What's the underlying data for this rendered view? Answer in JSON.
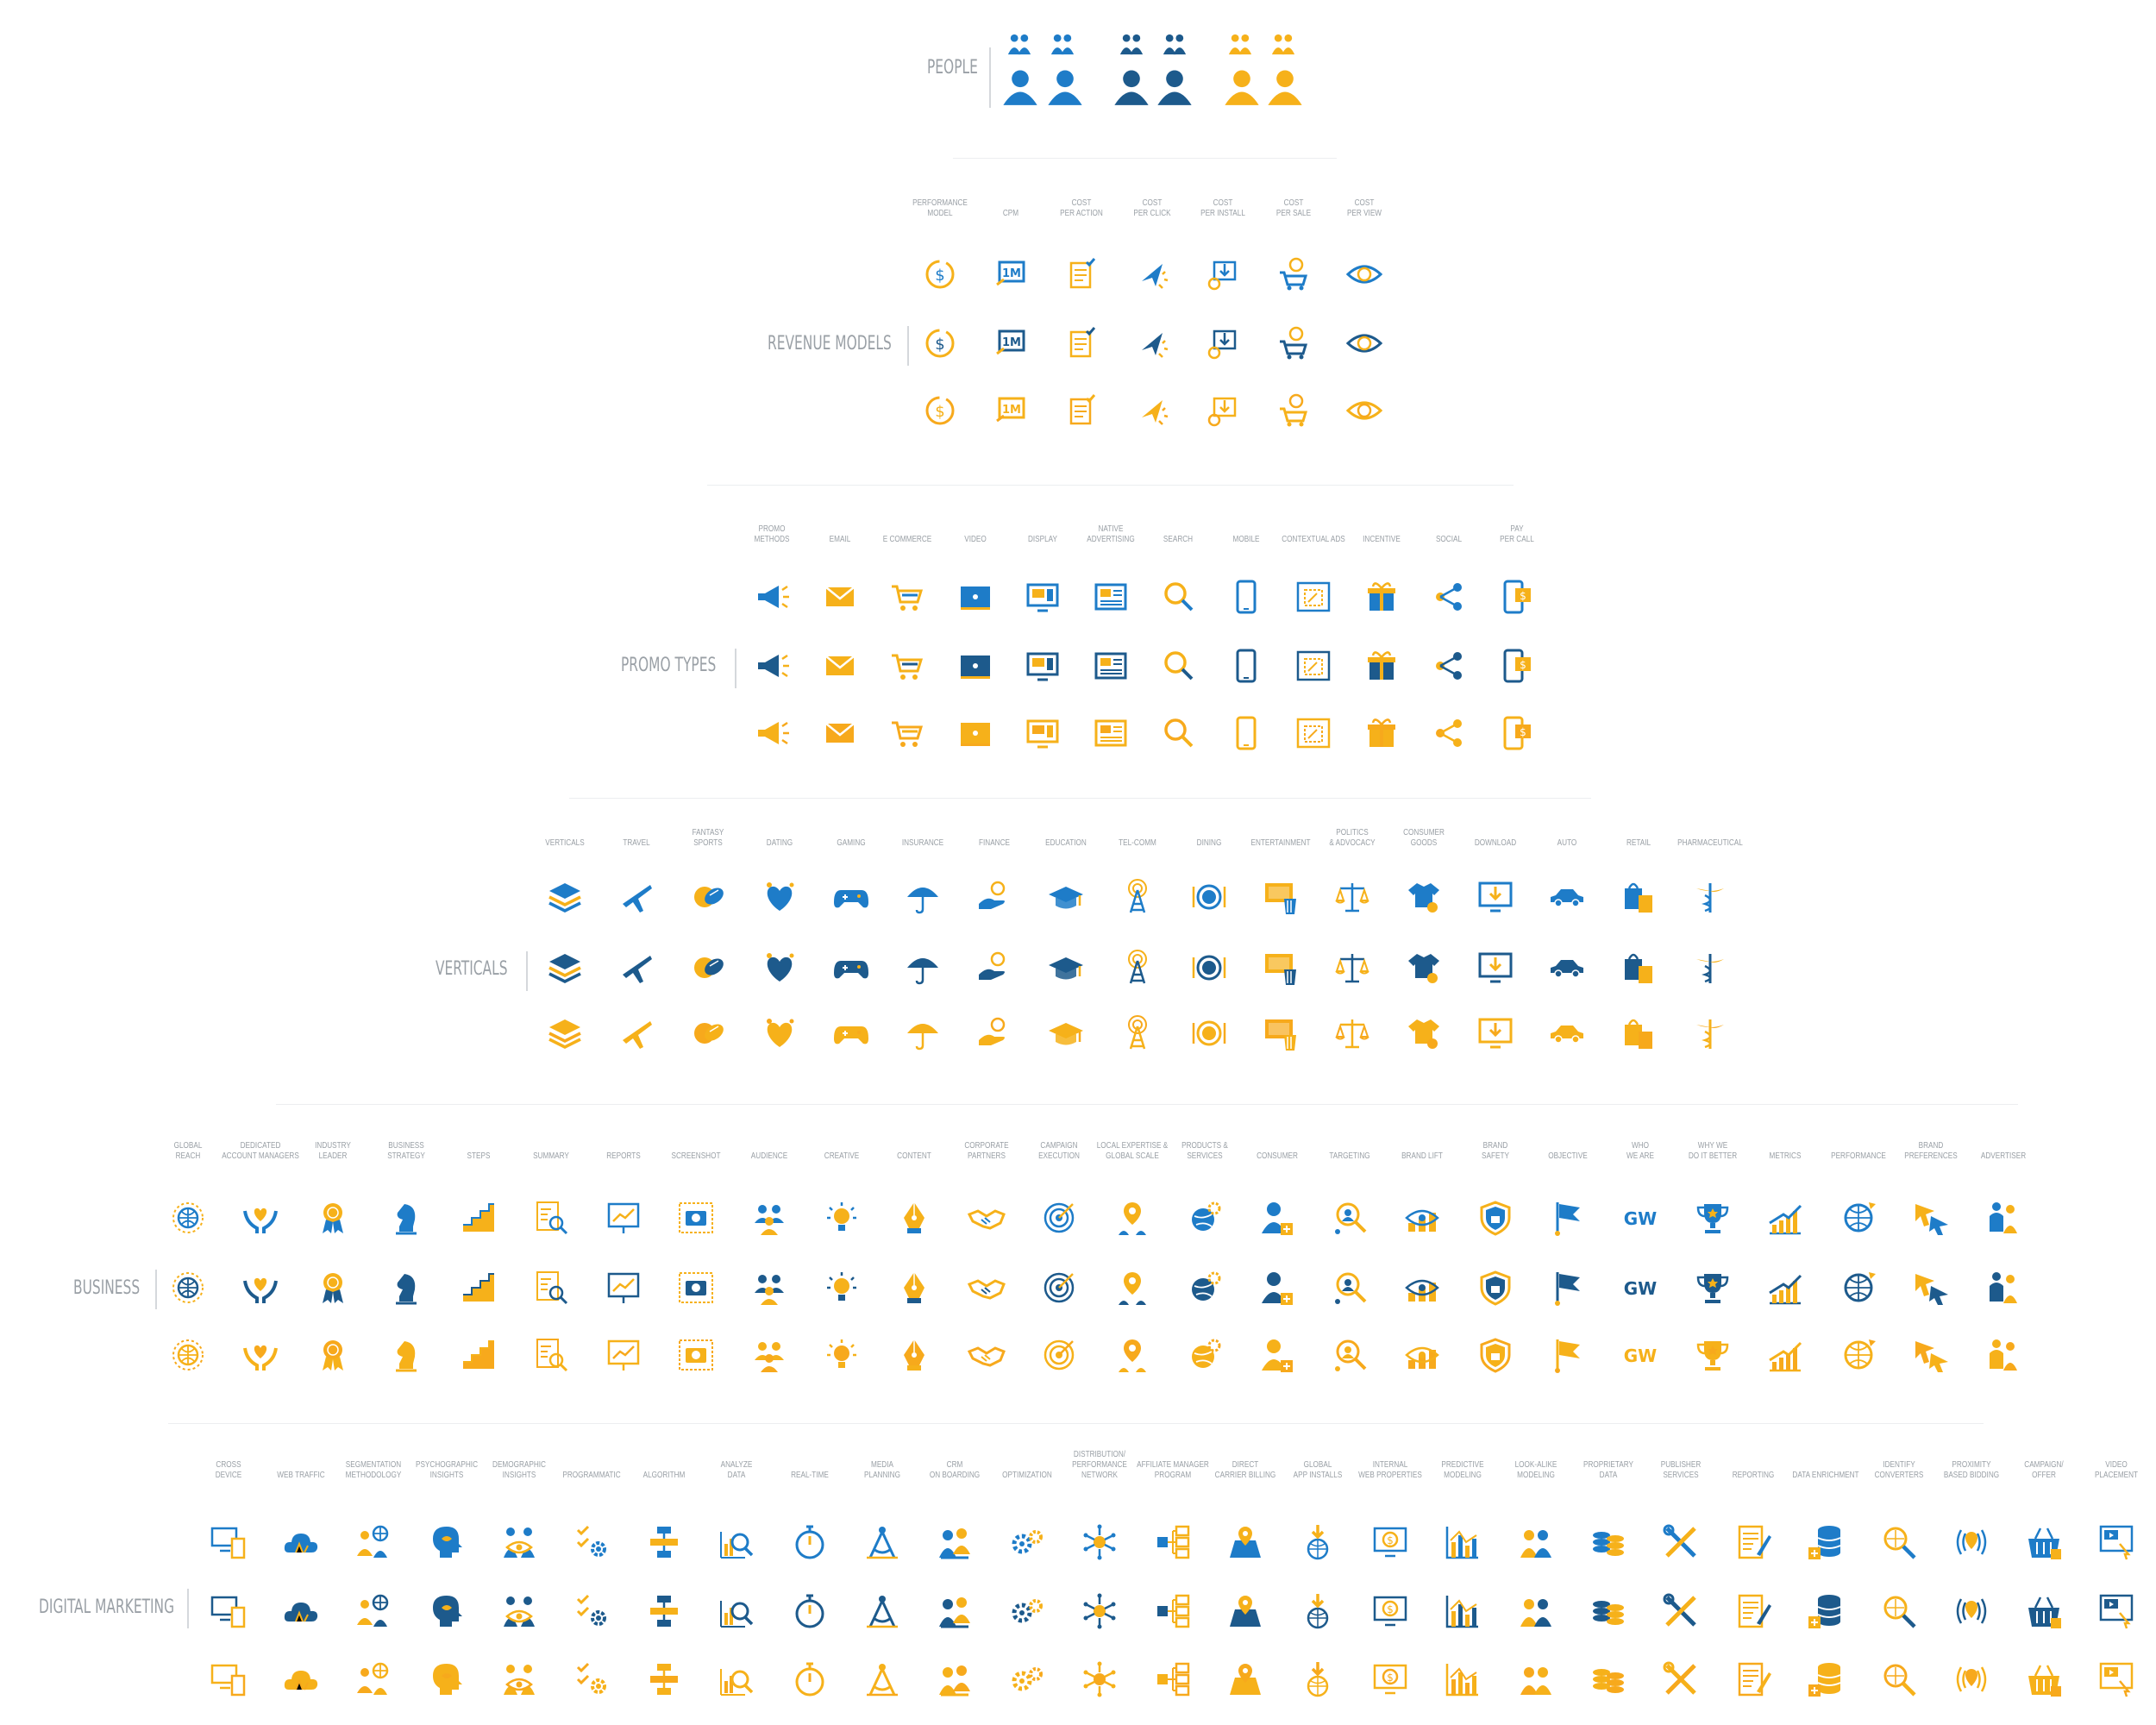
{
  "colors": {
    "blue": "#1e7cc8",
    "navy": "#1d5a8c",
    "orange": "#f6b11a",
    "gold": "#f7a91c",
    "label": "#9aa0a6"
  },
  "sections": [
    {
      "id": "people",
      "label": "PEOPLE",
      "columns": [],
      "people_icons": [
        "people-group-icon",
        "people-group-icon",
        "people-group-icon",
        "people-group-icon",
        "people-group-icon",
        "people-group-icon"
      ]
    },
    {
      "id": "revenue",
      "label": "REVENUE MODELS",
      "columns": [
        {
          "label": "PERFORMANCE\nMODEL",
          "icon": "dollar-coin-icon"
        },
        {
          "label": "CPM",
          "icon": "one-million-icon"
        },
        {
          "label": "COST\nPER ACTION",
          "icon": "checklist-icon"
        },
        {
          "label": "COST\nPER CLICK",
          "icon": "cursor-click-icon"
        },
        {
          "label": "COST\nPER INSTALL",
          "icon": "install-coin-icon"
        },
        {
          "label": "COST\nPER SALE",
          "icon": "cart-coin-icon"
        },
        {
          "label": "COST\nPER VIEW",
          "icon": "eye-dollar-icon"
        }
      ]
    },
    {
      "id": "promo",
      "label": "PROMO TYPES",
      "columns": [
        {
          "label": "PROMO\nMETHODS",
          "icon": "megaphone-icon"
        },
        {
          "label": "EMAIL",
          "icon": "envelope-icon"
        },
        {
          "label": "E COMMERCE",
          "icon": "cart-icon"
        },
        {
          "label": "VIDEO",
          "icon": "video-screen-icon"
        },
        {
          "label": "DISPLAY",
          "icon": "display-monitor-icon"
        },
        {
          "label": "NATIVE\nADVERTISING",
          "icon": "native-ad-icon"
        },
        {
          "label": "SEARCH",
          "icon": "magnifier-icon"
        },
        {
          "label": "MOBILE",
          "icon": "mobile-phone-icon"
        },
        {
          "label": "CONTEXTUAL ADS",
          "icon": "contextual-ad-icon"
        },
        {
          "label": "INCENTIVE",
          "icon": "gift-icon"
        },
        {
          "label": "SOCIAL",
          "icon": "share-icon"
        },
        {
          "label": "PAY\nPER CALL",
          "icon": "phone-dollar-icon"
        }
      ]
    },
    {
      "id": "verticals",
      "label": "VERTICALS",
      "columns": [
        {
          "label": "VERTICALS",
          "icon": "layers-icon"
        },
        {
          "label": "TRAVEL",
          "icon": "airplane-icon"
        },
        {
          "label": "FANTASY\nSPORTS",
          "icon": "balls-icon"
        },
        {
          "label": "DATING",
          "icon": "heart-icon"
        },
        {
          "label": "GAMING",
          "icon": "gamepad-icon"
        },
        {
          "label": "INSURANCE",
          "icon": "umbrella-icon"
        },
        {
          "label": "FINANCE",
          "icon": "hand-coin-icon"
        },
        {
          "label": "EDUCATION",
          "icon": "graduation-cap-icon"
        },
        {
          "label": "TEL-COMM",
          "icon": "antenna-tower-icon"
        },
        {
          "label": "DINING",
          "icon": "plate-icon"
        },
        {
          "label": "ENTERTAINMENT",
          "icon": "tv-popcorn-icon"
        },
        {
          "label": "POLITICS\n& ADVOCACY",
          "icon": "scales-icon"
        },
        {
          "label": "CONSUMER\nGOODS",
          "icon": "shirt-icon"
        },
        {
          "label": "DOWNLOAD",
          "icon": "download-monitor-icon"
        },
        {
          "label": "AUTO",
          "icon": "car-icon"
        },
        {
          "label": "RETAIL",
          "icon": "shopping-bags-icon"
        },
        {
          "label": "PHARMACEUTICAL",
          "icon": "caduceus-icon"
        }
      ]
    },
    {
      "id": "business",
      "label": "BUSINESS",
      "columns": [
        {
          "label": "GLOBAL\nREACH",
          "icon": "globe-icon"
        },
        {
          "label": "DEDICATED\nACCOUNT MANAGERS",
          "icon": "hands-heart-icon"
        },
        {
          "label": "INDUSTRY\nLEADER",
          "icon": "award-ribbon-icon"
        },
        {
          "label": "BUSINESS\nSTRATEGY",
          "icon": "chess-knight-icon"
        },
        {
          "label": "STEPS",
          "icon": "stairs-icon"
        },
        {
          "label": "SUMMARY",
          "icon": "document-search-icon"
        },
        {
          "label": "REPORTS",
          "icon": "report-board-icon"
        },
        {
          "label": "SCREENSHOT",
          "icon": "camera-frame-icon"
        },
        {
          "label": "AUDIENCE",
          "icon": "audience-icon"
        },
        {
          "label": "CREATIVE",
          "icon": "lightbulb-icon"
        },
        {
          "label": "CONTENT",
          "icon": "pen-nib-icon"
        },
        {
          "label": "CORPORATE\nPARTNERS",
          "icon": "handshake-icon"
        },
        {
          "label": "CAMPAIGN\nEXECUTION",
          "icon": "target-icon"
        },
        {
          "label": "LOCAL EXPERTISE &\nGLOBAL SCALE",
          "icon": "location-people-icon"
        },
        {
          "label": "PRODUCTS &\nSERVICES",
          "icon": "globe-gear-icon"
        },
        {
          "label": "CONSUMER",
          "icon": "consumer-add-icon"
        },
        {
          "label": "TARGETING",
          "icon": "targeting-people-icon"
        },
        {
          "label": "BRAND LIFT",
          "icon": "brand-lift-icon"
        },
        {
          "label": "BRAND\nSAFETY",
          "icon": "shield-lock-icon"
        },
        {
          "label": "OBJECTIVE",
          "icon": "flag-icon"
        },
        {
          "label": "WHO\nWE ARE",
          "icon": "gw-logo-icon"
        },
        {
          "label": "WHY WE\nDO IT BETTER",
          "icon": "trophy-icon"
        },
        {
          "label": "METRICS",
          "icon": "growth-chart-icon"
        },
        {
          "label": "PERFORMANCE",
          "icon": "globe-arrow-icon"
        },
        {
          "label": "BRAND\nPREFERENCES",
          "icon": "cursors-icon"
        },
        {
          "label": "ADVERTISER",
          "icon": "business-people-icon"
        }
      ]
    },
    {
      "id": "digital",
      "label": "DIGITAL MARKETING",
      "columns": [
        {
          "label": "CROSS\nDEVICE",
          "icon": "cross-device-icon"
        },
        {
          "label": "WEB TRAFFIC",
          "icon": "cloud-traffic-icon"
        },
        {
          "label": "SEGMENTATION\nMETHODOLOGY",
          "icon": "segmentation-icon"
        },
        {
          "label": "PSYCHOGRAPHIC\nINSIGHTS",
          "icon": "head-eye-icon"
        },
        {
          "label": "DEMOGRAPHIC\nINSIGHTS",
          "icon": "people-eye-icon"
        },
        {
          "label": "PROGRAMMATIC",
          "icon": "checklist-gear-icon"
        },
        {
          "label": "ALGORITHM",
          "icon": "flowchart-icon"
        },
        {
          "label": "ANALYZE\nDATA",
          "icon": "analyze-chart-icon"
        },
        {
          "label": "REAL-TIME",
          "icon": "stopwatch-icon"
        },
        {
          "label": "MEDIA\nPLANNING",
          "icon": "compass-icon"
        },
        {
          "label": "CRM\nON BOARDING",
          "icon": "crm-people-icon"
        },
        {
          "label": "OPTIMIZATION",
          "icon": "gears-icon"
        },
        {
          "label": "DISTRIBUTION/\nPERFORMANCE NETWORK",
          "icon": "network-hub-icon"
        },
        {
          "label": "AFFILIATE MANAGER\nPROGRAM",
          "icon": "hierarchy-icon"
        },
        {
          "label": "DIRECT\nCARRIER BILLING",
          "icon": "map-pin-icon"
        },
        {
          "label": "GLOBAL\nAPP INSTALLS",
          "icon": "globe-download-icon"
        },
        {
          "label": "INTERNAL\nWEB PROPERTIES",
          "icon": "monitor-dollar-icon"
        },
        {
          "label": "PREDICTIVE\nMODELING",
          "icon": "bar-chart-icon"
        },
        {
          "label": "LOOK-ALIKE\nMODELING",
          "icon": "lookalike-icon"
        },
        {
          "label": "PROPRIETARY\nDATA",
          "icon": "data-stacks-icon"
        },
        {
          "label": "PUBLISHER\nSERVICES",
          "icon": "tools-icon"
        },
        {
          "label": "REPORTING",
          "icon": "report-pen-icon"
        },
        {
          "label": "DATA ENRICHMENT",
          "icon": "database-add-icon"
        },
        {
          "label": "IDENTIFY\nCONVERTERS",
          "icon": "search-target-icon"
        },
        {
          "label": "PROXIMITY\nBASED BIDDING",
          "icon": "proximity-icon"
        },
        {
          "label": "CAMPAIGN/\nOFFER",
          "icon": "basket-icon"
        },
        {
          "label": "VIDEO\nPLACEMENT",
          "icon": "video-placement-icon"
        }
      ]
    }
  ]
}
